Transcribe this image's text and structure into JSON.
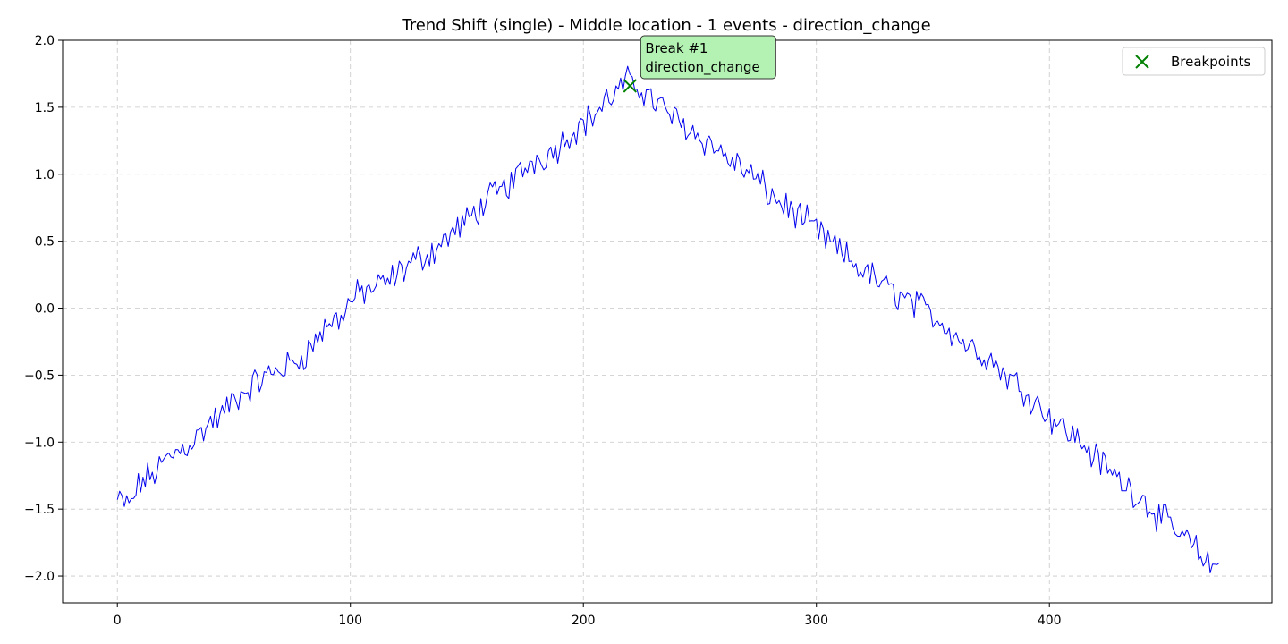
{
  "chart_data": {
    "type": "line",
    "title": "Trend Shift (single) - Middle location - 1 events - direction_change",
    "xlabel": "",
    "ylabel": "",
    "xlim": [
      -23.5,
      495.5
    ],
    "ylim": [
      -2.2,
      2.0
    ],
    "xticks": [
      0,
      100,
      200,
      300,
      400
    ],
    "yticks": [
      -2.0,
      -1.5,
      -1.0,
      -0.5,
      0.0,
      0.5,
      1.0,
      1.5,
      2.0
    ],
    "xtick_labels": [
      "0",
      "100",
      "200",
      "300",
      "400"
    ],
    "ytick_labels": [
      "−2.0",
      "−1.5",
      "−1.0",
      "−0.5",
      "0.0",
      "0.5",
      "1.0",
      "1.5",
      "2.0"
    ],
    "grid": true,
    "legend_position": "top-right",
    "series": [
      {
        "name": "",
        "color": "#0000ee",
        "keypoints": [
          [
            0,
            -1.43
          ],
          [
            5,
            -1.48
          ],
          [
            10,
            -1.3
          ],
          [
            15,
            -1.25
          ],
          [
            20,
            -1.15
          ],
          [
            25,
            -1.08
          ],
          [
            30,
            -1.02
          ],
          [
            35,
            -0.95
          ],
          [
            40,
            -0.85
          ],
          [
            45,
            -0.8
          ],
          [
            50,
            -0.68
          ],
          [
            55,
            -0.62
          ],
          [
            60,
            -0.55
          ],
          [
            65,
            -0.5
          ],
          [
            70,
            -0.45
          ],
          [
            75,
            -0.42
          ],
          [
            80,
            -0.35
          ],
          [
            85,
            -0.25
          ],
          [
            90,
            -0.12
          ],
          [
            95,
            -0.08
          ],
          [
            100,
            0.05
          ],
          [
            105,
            0.12
          ],
          [
            110,
            0.15
          ],
          [
            115,
            0.18
          ],
          [
            120,
            0.25
          ],
          [
            125,
            0.32
          ],
          [
            130,
            0.38
          ],
          [
            135,
            0.42
          ],
          [
            140,
            0.5
          ],
          [
            145,
            0.58
          ],
          [
            150,
            0.65
          ],
          [
            155,
            0.74
          ],
          [
            160,
            0.82
          ],
          [
            165,
            0.88
          ],
          [
            170,
            0.95
          ],
          [
            175,
            1.05
          ],
          [
            180,
            1.12
          ],
          [
            185,
            1.15
          ],
          [
            190,
            1.22
          ],
          [
            195,
            1.32
          ],
          [
            200,
            1.38
          ],
          [
            205,
            1.45
          ],
          [
            210,
            1.55
          ],
          [
            215,
            1.62
          ],
          [
            220,
            1.7
          ],
          [
            225,
            1.64
          ],
          [
            230,
            1.55
          ],
          [
            235,
            1.48
          ],
          [
            240,
            1.4
          ],
          [
            245,
            1.35
          ],
          [
            250,
            1.28
          ],
          [
            255,
            1.22
          ],
          [
            260,
            1.15
          ],
          [
            265,
            1.08
          ],
          [
            270,
            1.02
          ],
          [
            275,
            0.95
          ],
          [
            280,
            0.85
          ],
          [
            285,
            0.78
          ],
          [
            290,
            0.72
          ],
          [
            295,
            0.65
          ],
          [
            300,
            0.58
          ],
          [
            305,
            0.5
          ],
          [
            310,
            0.42
          ],
          [
            315,
            0.35
          ],
          [
            320,
            0.28
          ],
          [
            325,
            0.22
          ],
          [
            330,
            0.15
          ],
          [
            335,
            0.1
          ],
          [
            340,
            0.05
          ],
          [
            345,
            0.0
          ],
          [
            350,
            -0.05
          ],
          [
            355,
            -0.12
          ],
          [
            360,
            -0.2
          ],
          [
            365,
            -0.28
          ],
          [
            370,
            -0.32
          ],
          [
            375,
            -0.38
          ],
          [
            380,
            -0.48
          ],
          [
            385,
            -0.55
          ],
          [
            390,
            -0.62
          ],
          [
            395,
            -0.72
          ],
          [
            400,
            -0.8
          ],
          [
            405,
            -0.88
          ],
          [
            410,
            -0.95
          ],
          [
            415,
            -1.02
          ],
          [
            420,
            -1.12
          ],
          [
            425,
            -1.2
          ],
          [
            430,
            -1.28
          ],
          [
            435,
            -1.35
          ],
          [
            440,
            -1.42
          ],
          [
            445,
            -1.52
          ],
          [
            450,
            -1.6
          ],
          [
            455,
            -1.68
          ],
          [
            460,
            -1.75
          ],
          [
            465,
            -1.85
          ],
          [
            470,
            -1.95
          ],
          [
            473,
            -1.9
          ]
        ]
      }
    ],
    "breakpoints": {
      "legend_label": "Breakpoints",
      "marker": "x",
      "color": "#008000",
      "points": [
        [
          220,
          1.66
        ]
      ]
    },
    "annotations": [
      {
        "lines": [
          "Break #1",
          "direction_change"
        ],
        "x": 220,
        "y": 1.66,
        "bg": "#b3f2b3",
        "border": "#333333"
      }
    ]
  }
}
